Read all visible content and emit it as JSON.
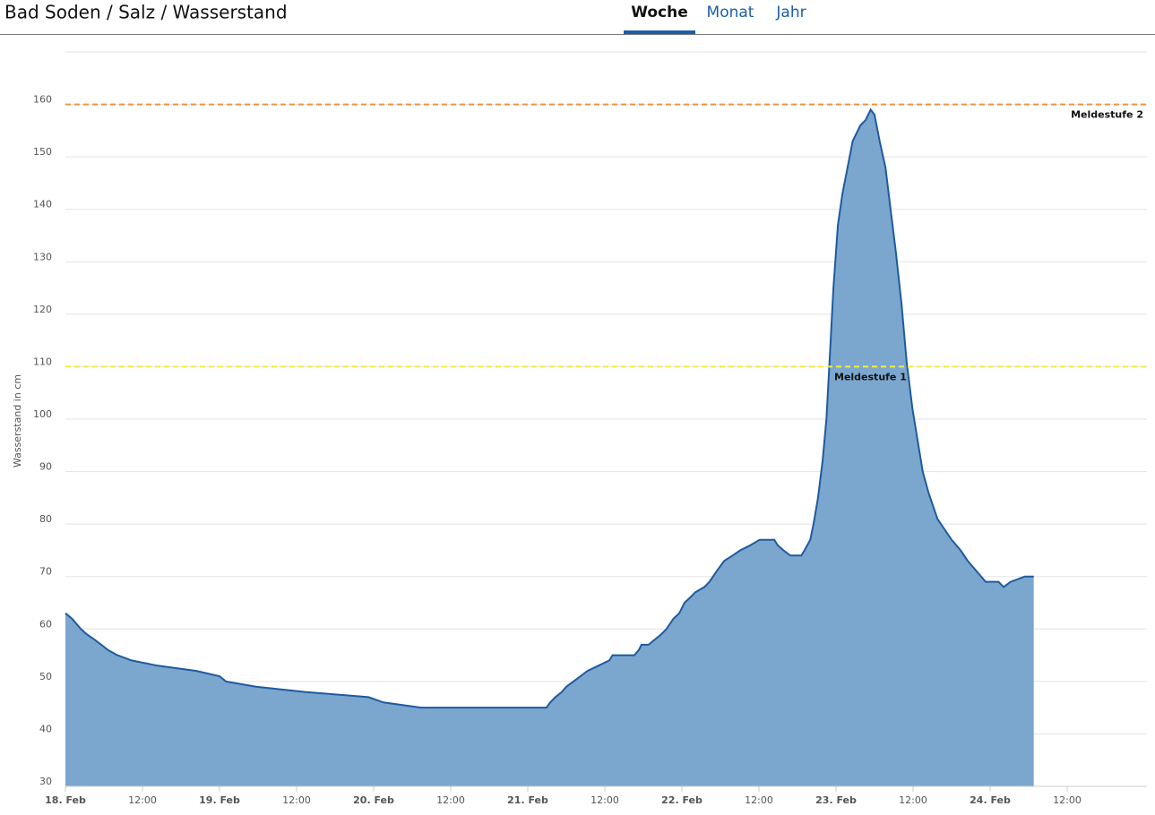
{
  "tabs": {
    "items": [
      "Woche",
      "Monat",
      "Jahr"
    ],
    "active": 0
  },
  "chart_data": {
    "type": "area",
    "title": "Bad Soden / Salz / Wasserstand",
    "y_label": "Wasserstand in cm",
    "color": "#7ba7cf",
    "line_color": "#1f5a9e",
    "x": [
      0,
      1.0,
      1.7,
      2.4,
      3.3,
      4.5,
      5.6,
      6.6,
      8.1,
      10.3,
      14.4,
      20.4,
      24,
      25.0,
      29.7,
      37.3,
      47.2,
      49.5,
      55.4,
      74.9,
      75.5,
      76.3,
      77.3,
      78.0,
      79.1,
      80.2,
      81.3,
      83.0,
      84.7,
      85.2,
      88.6,
      89.3,
      89.7,
      90.8,
      92.8,
      93.6,
      94.7,
      95.6,
      96.4,
      97.3,
      98.1,
      99.5,
      100.3,
      101.4,
      102.6,
      103.9,
      105.1,
      106.7,
      108.1,
      110.4,
      110.9,
      111.8,
      112.9,
      114.6,
      115.1,
      116.0,
      116.5,
      117.2,
      117.9,
      118.5,
      119.0,
      119.6,
      120.3,
      121.0,
      121.8,
      122.6,
      123.8,
      124.6,
      125.4,
      126.0,
      126.8,
      127.7,
      128.5,
      129.3,
      130.2,
      131.0,
      131.9,
      132.7,
      133.5,
      134.4,
      135.8,
      136.9,
      138.0,
      139.4,
      140.5,
      141.9,
      143.3,
      145.3,
      146.1,
      147.2,
      149.4,
      150.8
    ],
    "values": [
      63,
      62,
      61,
      60,
      59,
      58,
      57,
      56,
      55,
      54,
      53,
      52,
      51,
      50,
      49,
      48,
      47,
      46,
      45,
      45,
      46,
      47,
      48,
      49,
      50,
      51,
      52,
      53,
      54,
      55,
      55,
      56,
      57,
      57,
      59,
      60,
      62,
      63,
      65,
      66,
      67,
      68,
      69,
      71,
      73,
      74,
      75,
      76,
      77,
      77,
      76,
      75,
      74,
      74,
      75,
      77,
      80,
      85,
      92,
      100,
      111,
      125,
      137,
      143,
      148,
      153,
      156,
      157,
      159,
      158,
      153,
      148,
      140,
      132,
      122,
      111,
      102,
      96,
      90,
      86,
      81,
      79,
      77,
      75,
      73,
      71,
      69,
      69,
      68,
      69,
      70,
      70
    ],
    "xlim": [
      0,
      168
    ],
    "xticks": [
      {
        "value": 0,
        "label": "18. Feb"
      },
      {
        "value": 12,
        "label": "12:00"
      },
      {
        "value": 24,
        "label": "19. Feb"
      },
      {
        "value": 36,
        "label": "12:00"
      },
      {
        "value": 48,
        "label": "20. Feb"
      },
      {
        "value": 60,
        "label": "12:00"
      },
      {
        "value": 72,
        "label": "21. Feb"
      },
      {
        "value": 84,
        "label": "12:00"
      },
      {
        "value": 96,
        "label": "22. Feb"
      },
      {
        "value": 108,
        "label": "12:00"
      },
      {
        "value": 120,
        "label": "23. Feb"
      },
      {
        "value": 132,
        "label": "12:00"
      },
      {
        "value": 144,
        "label": "24. Feb"
      },
      {
        "value": 156,
        "label": "12:00"
      }
    ],
    "ylim": [
      30,
      170
    ],
    "yticks": [
      30,
      40,
      50,
      60,
      70,
      80,
      90,
      100,
      110,
      120,
      130,
      140,
      150,
      160
    ],
    "grid": true,
    "plot_lines": [
      {
        "value": 110,
        "label": "Meldestufe 1",
        "color": "#f2ee3a"
      },
      {
        "value": 160,
        "label": "Meldestufe 2",
        "color": "#f0953a"
      }
    ]
  }
}
